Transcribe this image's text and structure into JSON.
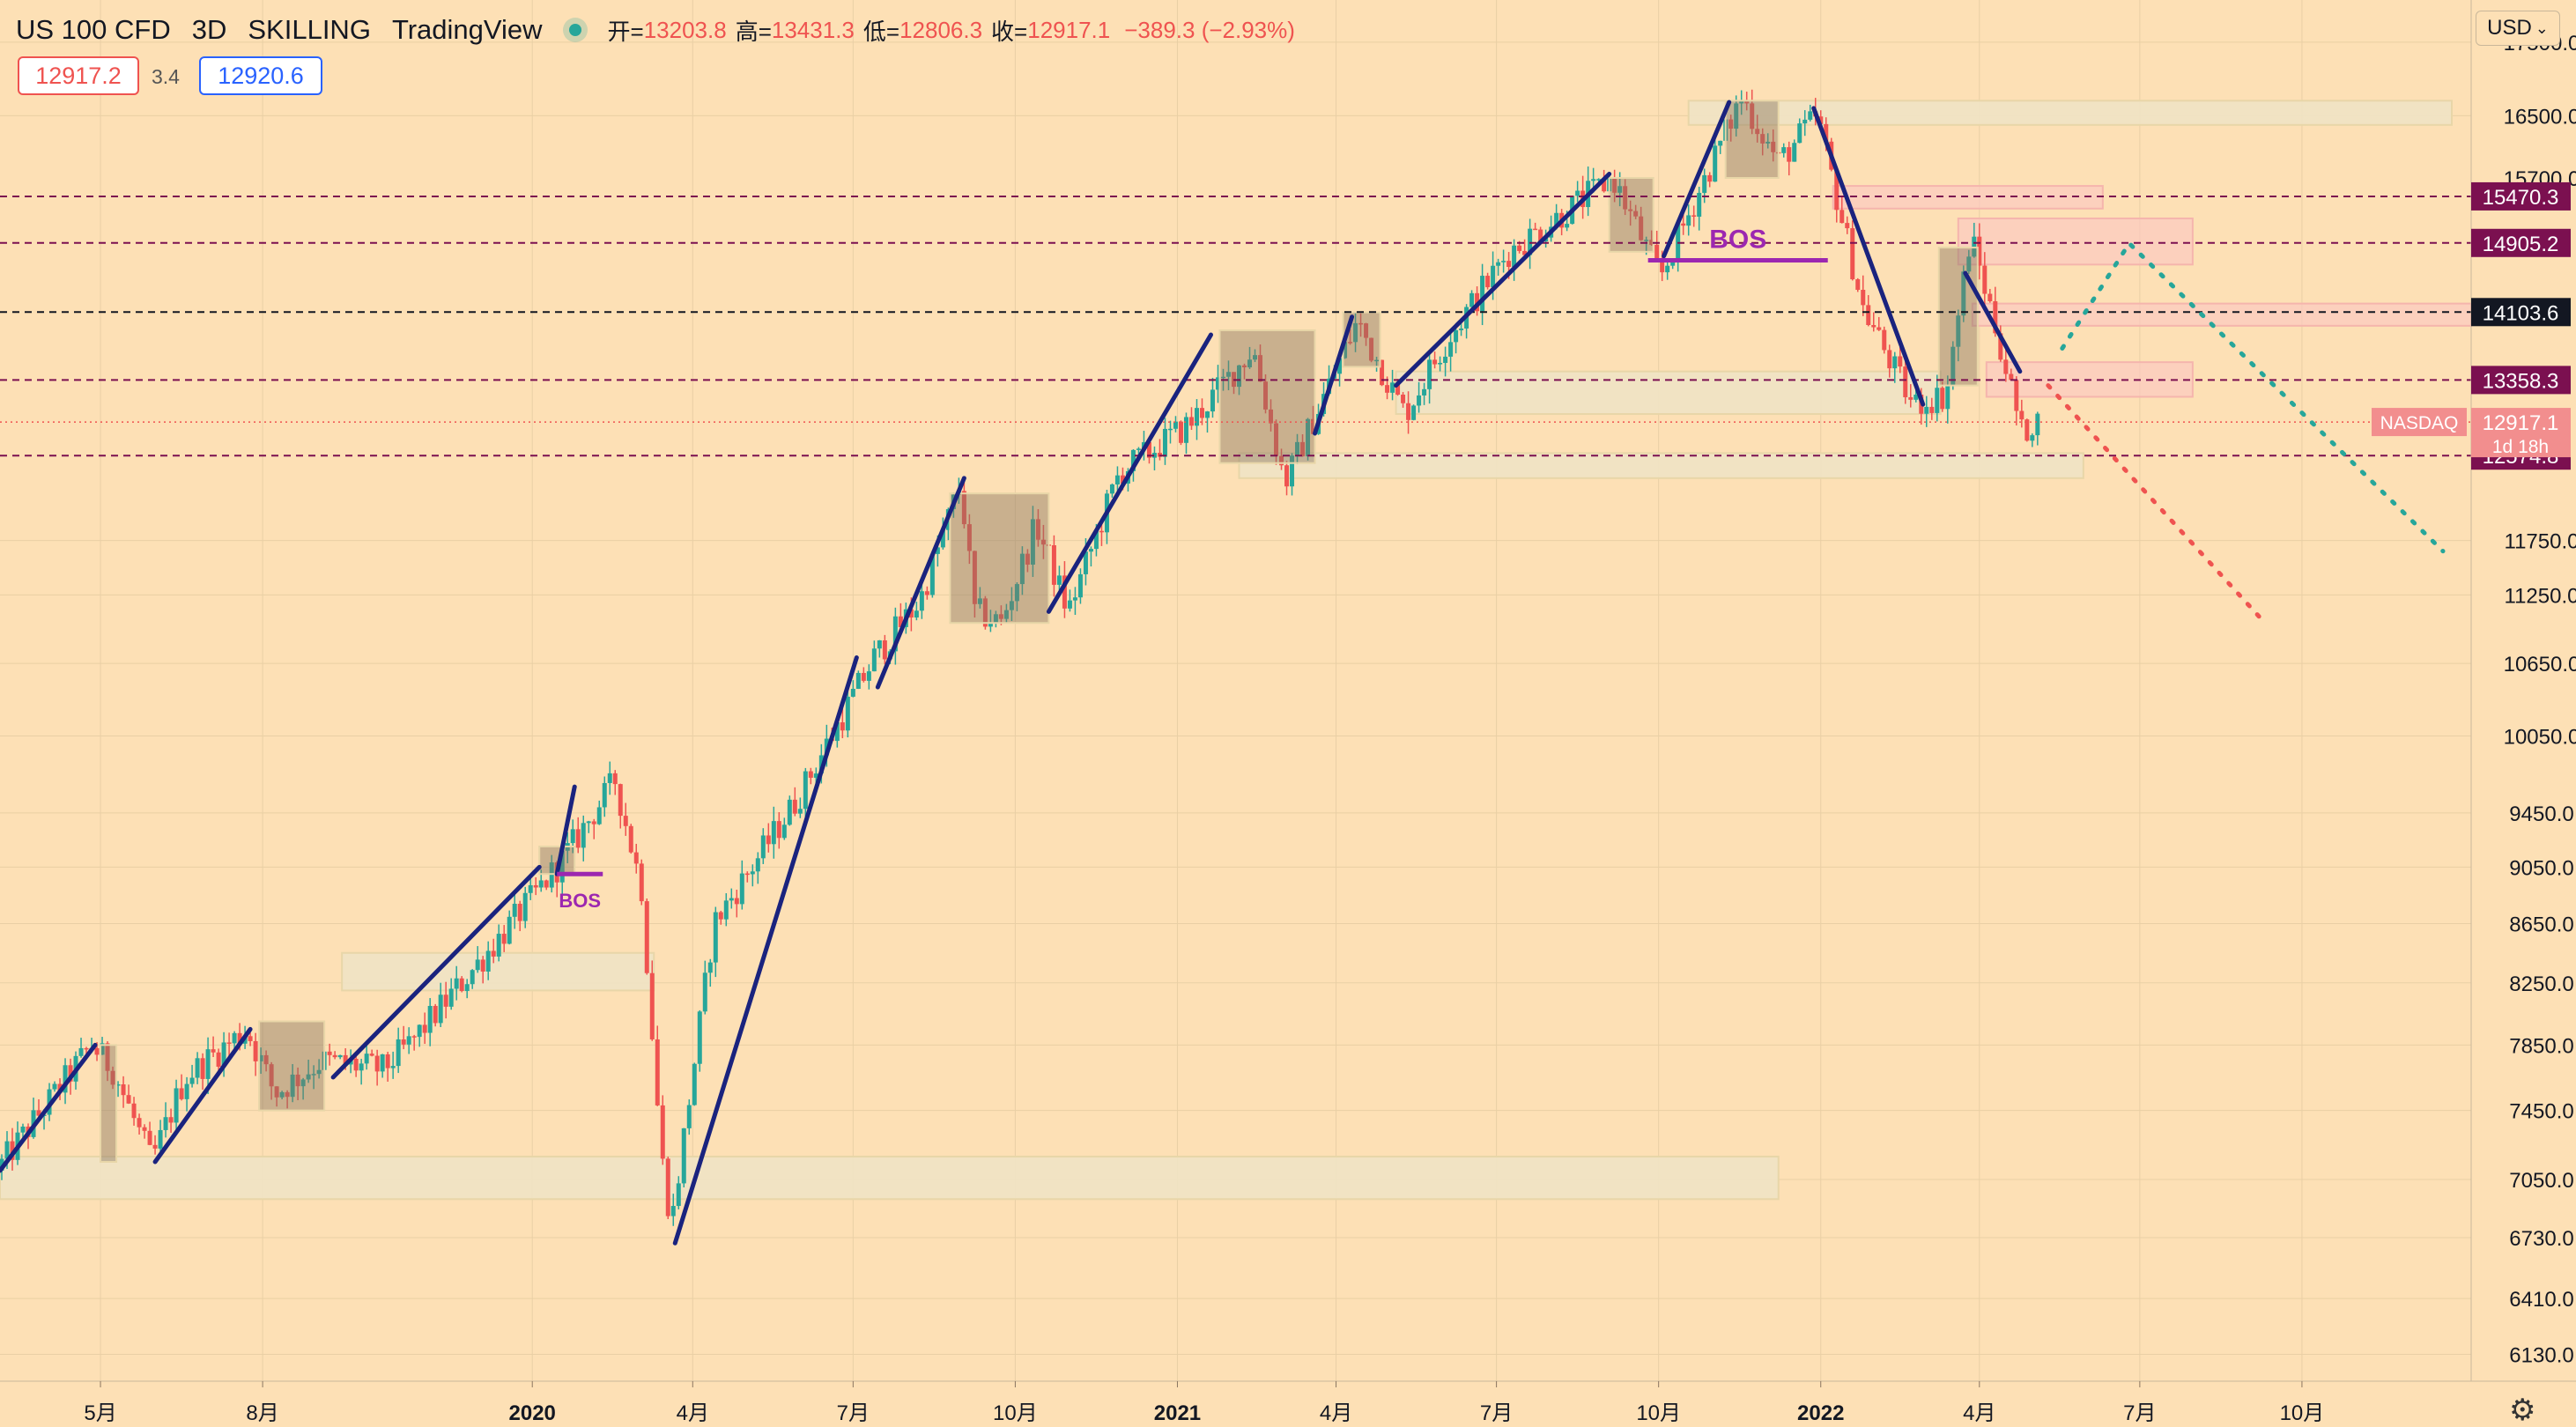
{
  "header": {
    "symbol": "US 100 CFD",
    "interval": "3D",
    "broker": "SKILLING",
    "platform": "TradingView",
    "open_label": "开=",
    "open": "13203.8",
    "high_label": "高=",
    "high": "13431.3",
    "low_label": "低=",
    "low": "12806.3",
    "close_label": "收=",
    "close": "12917.1",
    "change": "−389.3 (−2.93%)",
    "sell_price": "12917.2",
    "spread": "3.4",
    "buy_price": "12920.6",
    "currency": "USD",
    "currency_icon": "chevron-down-icon",
    "status_icon": "market-open-dot-icon",
    "settings_icon": "gear-icon"
  },
  "colors": {
    "background": "#fde0b5",
    "up": "#26a69a",
    "down": "#ef5350",
    "trend_line": "#1a237e",
    "bos_line": "#9c27b0",
    "demand_zone": "#efe3c4",
    "supply_zone": "#fbc9c0",
    "consolidation_box": "#8a7560",
    "projection_up": "#26a69a",
    "projection_down": "#ef5350",
    "level_label_purple": "#7b1050",
    "level_label_dark": "#131722",
    "last_price_label": "#f28e8e"
  },
  "chart_data": {
    "type": "candlestick",
    "y_scale": "log",
    "y_axis_ticks": [
      6130,
      6410,
      6730,
      7050,
      7450,
      7850,
      8250,
      8650,
      9050,
      9450,
      10050,
      10650,
      11250,
      11750,
      16500,
      17500
    ],
    "y_axis_tick_labels": [
      "6130.0",
      "6410.0",
      "6730.0",
      "7050.0",
      "7450.0",
      "7850.0",
      "8250.0",
      "8650.0",
      "9050.0",
      "9450.0",
      "10050.0",
      "10650.0",
      "11250.0",
      "11750.0",
      "16500.0",
      "17500.0"
    ],
    "y_axis_partial_label": "15700.0",
    "x_axis_ticks": [
      {
        "label": "5月",
        "date": "2019-05-01",
        "bold": false
      },
      {
        "label": "8月",
        "date": "2019-08-01",
        "bold": false
      },
      {
        "label": "2020",
        "date": "2020-01-01",
        "bold": true
      },
      {
        "label": "4月",
        "date": "2020-04-01",
        "bold": false
      },
      {
        "label": "7月",
        "date": "2020-07-01",
        "bold": false
      },
      {
        "label": "10月",
        "date": "2020-10-01",
        "bold": false
      },
      {
        "label": "2021",
        "date": "2021-01-01",
        "bold": true
      },
      {
        "label": "4月",
        "date": "2021-04-01",
        "bold": false
      },
      {
        "label": "7月",
        "date": "2021-07-01",
        "bold": false
      },
      {
        "label": "10月",
        "date": "2021-10-01",
        "bold": false
      },
      {
        "label": "2022",
        "date": "2022-01-01",
        "bold": true
      },
      {
        "label": "4月",
        "date": "2022-04-01",
        "bold": false
      },
      {
        "label": "7月",
        "date": "2022-07-01",
        "bold": false
      },
      {
        "label": "10月",
        "date": "2022-10-01",
        "bold": false
      }
    ],
    "x_range": [
      "2019-03-05",
      "2023-01-05"
    ],
    "y_range": [
      6000,
      18100
    ],
    "price_path": [
      [
        "2019-03-05",
        7100
      ],
      [
        "2019-04-28",
        7850
      ],
      [
        "2019-05-10",
        7700
      ],
      [
        "2019-06-01",
        7150
      ],
      [
        "2019-06-20",
        7650
      ],
      [
        "2019-07-25",
        7950
      ],
      [
        "2019-08-10",
        7550
      ],
      [
        "2019-09-05",
        7750
      ],
      [
        "2019-10-10",
        7700
      ],
      [
        "2019-10-25",
        7850
      ],
      [
        "2019-12-01",
        8350
      ],
      [
        "2020-01-01",
        8800
      ],
      [
        "2020-01-20",
        9100
      ],
      [
        "2020-02-19",
        9700
      ],
      [
        "2020-03-05",
        8900
      ],
      [
        "2020-03-16",
        7200
      ],
      [
        "2020-03-22",
        6800
      ],
      [
        "2020-04-15",
        8650
      ],
      [
        "2020-06-01",
        9550
      ],
      [
        "2020-07-15",
        10700
      ],
      [
        "2020-08-10",
        11200
      ],
      [
        "2020-09-02",
        12300
      ],
      [
        "2020-09-10",
        11100
      ],
      [
        "2020-09-25",
        11000
      ],
      [
        "2020-10-15",
        11900
      ],
      [
        "2020-11-02",
        11100
      ],
      [
        "2020-12-01",
        12400
      ],
      [
        "2021-01-10",
        12900
      ],
      [
        "2021-02-15",
        13700
      ],
      [
        "2021-03-05",
        12300
      ],
      [
        "2021-03-25",
        13100
      ],
      [
        "2021-04-15",
        14000
      ],
      [
        "2021-05-12",
        13000
      ],
      [
        "2021-06-05",
        13800
      ],
      [
        "2021-07-10",
        14800
      ],
      [
        "2021-09-07",
        15700
      ],
      [
        "2021-10-04",
        14500
      ],
      [
        "2021-11-19",
        16750
      ],
      [
        "2021-12-10",
        15900
      ],
      [
        "2022-01-01",
        16500
      ],
      [
        "2022-01-27",
        14150
      ],
      [
        "2022-02-24",
        13100
      ],
      [
        "2022-03-15",
        13200
      ],
      [
        "2022-03-29",
        15000
      ],
      [
        "2022-04-14",
        13800
      ],
      [
        "2022-04-27",
        12800
      ],
      [
        "2022-05-03",
        12917
      ]
    ],
    "consolidation_boxes": [
      {
        "t1": "2019-05-01",
        "t2": "2019-05-10",
        "p1": 7850,
        "p2": 7150
      },
      {
        "t1": "2019-07-30",
        "t2": "2019-09-05",
        "p1": 8000,
        "p2": 7450
      },
      {
        "t1": "2020-01-05",
        "t2": "2020-01-25",
        "p1": 9200,
        "p2": 9000
      },
      {
        "t1": "2020-08-25",
        "t2": "2020-10-20",
        "p1": 12200,
        "p2": 11000
      },
      {
        "t1": "2021-01-25",
        "t2": "2021-03-20",
        "p1": 13900,
        "p2": 12500
      },
      {
        "t1": "2021-04-05",
        "t2": "2021-04-26",
        "p1": 14100,
        "p2": 13500
      },
      {
        "t1": "2021-09-03",
        "t2": "2021-09-28",
        "p1": 15700,
        "p2": 14800
      },
      {
        "t1": "2021-11-08",
        "t2": "2021-12-08",
        "p1": 16700,
        "p2": 15700
      },
      {
        "t1": "2022-03-09",
        "t2": "2022-03-31",
        "p1": 14850,
        "p2": 13300
      }
    ],
    "demand_zones": [
      {
        "t1": "2019-03-05",
        "t2": "2021-12-08",
        "p1": 7180,
        "p2": 6940
      },
      {
        "t1": "2019-09-15",
        "t2": "2020-03-10",
        "p1": 8450,
        "p2": 8200
      },
      {
        "t1": "2021-05-05",
        "t2": "2022-03-10",
        "p1": 13450,
        "p2": 13000
      },
      {
        "t1": "2021-02-05",
        "t2": "2022-05-30",
        "p1": 12600,
        "p2": 12350
      },
      {
        "t1": "2021-10-18",
        "t2": "2022-12-25",
        "p1": 16700,
        "p2": 16380
      }
    ],
    "supply_zones": [
      {
        "t1": "2022-01-08",
        "t2": "2022-06-10",
        "p1": 15600,
        "p2": 15320
      },
      {
        "t1": "2022-03-20",
        "t2": "2022-07-31",
        "p1": 15200,
        "p2": 14650
      },
      {
        "t1": "2022-03-28",
        "t2": "2023-01-05",
        "p1": 14200,
        "p2": 13950
      },
      {
        "t1": "2022-04-05",
        "t2": "2022-07-31",
        "p1": 13550,
        "p2": 13180
      }
    ],
    "trend_lines": [
      [
        [
          "2019-03-05",
          7100
        ],
        [
          "2019-04-28",
          7850
        ]
      ],
      [
        [
          "2019-06-01",
          7150
        ],
        [
          "2019-07-25",
          7950
        ]
      ],
      [
        [
          "2019-09-10",
          7650
        ],
        [
          "2020-01-05",
          9050
        ]
      ],
      [
        [
          "2020-01-15",
          9000
        ],
        [
          "2020-01-25",
          9650
        ]
      ],
      [
        [
          "2020-03-22",
          6700
        ],
        [
          "2020-07-03",
          10700
        ]
      ],
      [
        [
          "2020-07-15",
          10450
        ],
        [
          "2020-09-02",
          12350
        ]
      ],
      [
        [
          "2020-10-20",
          11100
        ],
        [
          "2021-01-20",
          13850
        ]
      ],
      [
        [
          "2021-03-20",
          12800
        ],
        [
          "2021-04-10",
          14050
        ]
      ],
      [
        [
          "2021-05-05",
          13300
        ],
        [
          "2021-09-03",
          15750
        ]
      ],
      [
        [
          "2021-10-04",
          14750
        ],
        [
          "2021-11-10",
          16680
        ]
      ],
      [
        [
          "2021-12-28",
          16600
        ],
        [
          "2022-02-28",
          13100
        ]
      ],
      [
        [
          "2022-03-24",
          14550
        ],
        [
          "2022-04-24",
          13450
        ]
      ]
    ],
    "bos_markers": [
      {
        "label": "BOS",
        "t1": "2020-01-15",
        "t2": "2020-02-10",
        "p": 9000
      },
      {
        "label": "BOS",
        "t1": "2021-09-25",
        "t2": "2022-01-05",
        "p": 14700
      }
    ],
    "projection_up": [
      [
        "2022-05-18",
        13700
      ],
      [
        "2022-06-25",
        14900
      ],
      [
        "2022-12-20",
        11650
      ]
    ],
    "projection_down": [
      [
        "2022-05-10",
        13300
      ],
      [
        "2022-09-10",
        11000
      ]
    ],
    "horizontal_levels": [
      {
        "price": 15470.3,
        "label": "15470.3",
        "style": "purple"
      },
      {
        "price": 14905.2,
        "label": "14905.2",
        "style": "purple"
      },
      {
        "price": 14103.6,
        "label": "14103.6",
        "style": "dark"
      },
      {
        "price": 13358.3,
        "label": "13358.3",
        "style": "purple"
      },
      {
        "price": 12574.8,
        "label": "12574.8",
        "style": "purple"
      }
    ],
    "last_price": {
      "price": 12917.1,
      "label": "12917.1",
      "countdown": "1d 18h",
      "tag": "NASDAQ"
    }
  }
}
